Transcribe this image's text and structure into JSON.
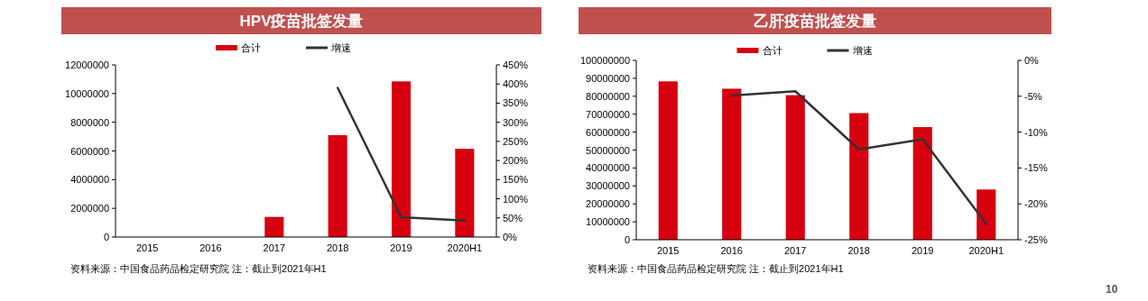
{
  "chart_data": [
    {
      "type": "bar",
      "title": "HPV疫苗批签发量",
      "categories": [
        "2015",
        "2016",
        "2017",
        "2018",
        "2019",
        "2020H1"
      ],
      "series": [
        {
          "name": "合计",
          "color": "#d7000f",
          "values": [
            null,
            null,
            1400000,
            7100000,
            10850000,
            6150000
          ]
        },
        {
          "name": "增速",
          "type": "line",
          "axis": "y2",
          "color": "#333333",
          "values": [
            null,
            null,
            null,
            390,
            52,
            43
          ]
        }
      ],
      "ylim": [
        0,
        12000000
      ],
      "yticks": [
        0,
        2000000,
        4000000,
        6000000,
        8000000,
        10000000,
        12000000
      ],
      "y2lim": [
        0,
        450
      ],
      "y2ticks": [
        {
          "value": 0,
          "label": "0%"
        },
        {
          "value": 50,
          "label": "50%"
        },
        {
          "value": 100,
          "label": "100%"
        },
        {
          "value": 150,
          "label": "150%"
        },
        {
          "value": 200,
          "label": "200%"
        },
        {
          "value": 250,
          "label": "250%"
        },
        {
          "value": 300,
          "label": "300%"
        },
        {
          "value": 350,
          "label": "350%"
        },
        {
          "value": 400,
          "label": "400%"
        },
        {
          "value": 450,
          "label": "450%"
        }
      ],
      "legend": "top",
      "annotations": [
        "资料来源：中国食品药品检定研究院 注：截止到2021年H1"
      ]
    },
    {
      "type": "bar",
      "title": "乙肝疫苗批签发量",
      "categories": [
        "2015",
        "2016",
        "2017",
        "2018",
        "2019",
        "2020H1"
      ],
      "series": [
        {
          "name": "合计",
          "color": "#d7000f",
          "values": [
            88300000,
            84200000,
            80600000,
            70600000,
            62800000,
            28000000
          ]
        },
        {
          "name": "增速",
          "type": "line",
          "axis": "y2",
          "color": "#333333",
          "values": [
            null,
            -4.9,
            -4.3,
            -12.4,
            -11.0,
            -22.8
          ]
        }
      ],
      "ylim": [
        0,
        100000000
      ],
      "yticks": [
        0,
        10000000,
        20000000,
        30000000,
        40000000,
        50000000,
        60000000,
        70000000,
        80000000,
        90000000,
        100000000
      ],
      "y2lim": [
        -25,
        0
      ],
      "y2ticks": [
        {
          "value": -25,
          "label": "-25%"
        },
        {
          "value": -20,
          "label": "-20%"
        },
        {
          "value": -15,
          "label": "-15%"
        },
        {
          "value": -10,
          "label": "-10%"
        },
        {
          "value": -5,
          "label": "-5%"
        },
        {
          "value": 0,
          "label": "0%"
        }
      ],
      "legend": "top",
      "annotations": [
        "资料来源：中国食品药品检定研究院 注：截止到2021年H1",
        "10"
      ]
    }
  ]
}
